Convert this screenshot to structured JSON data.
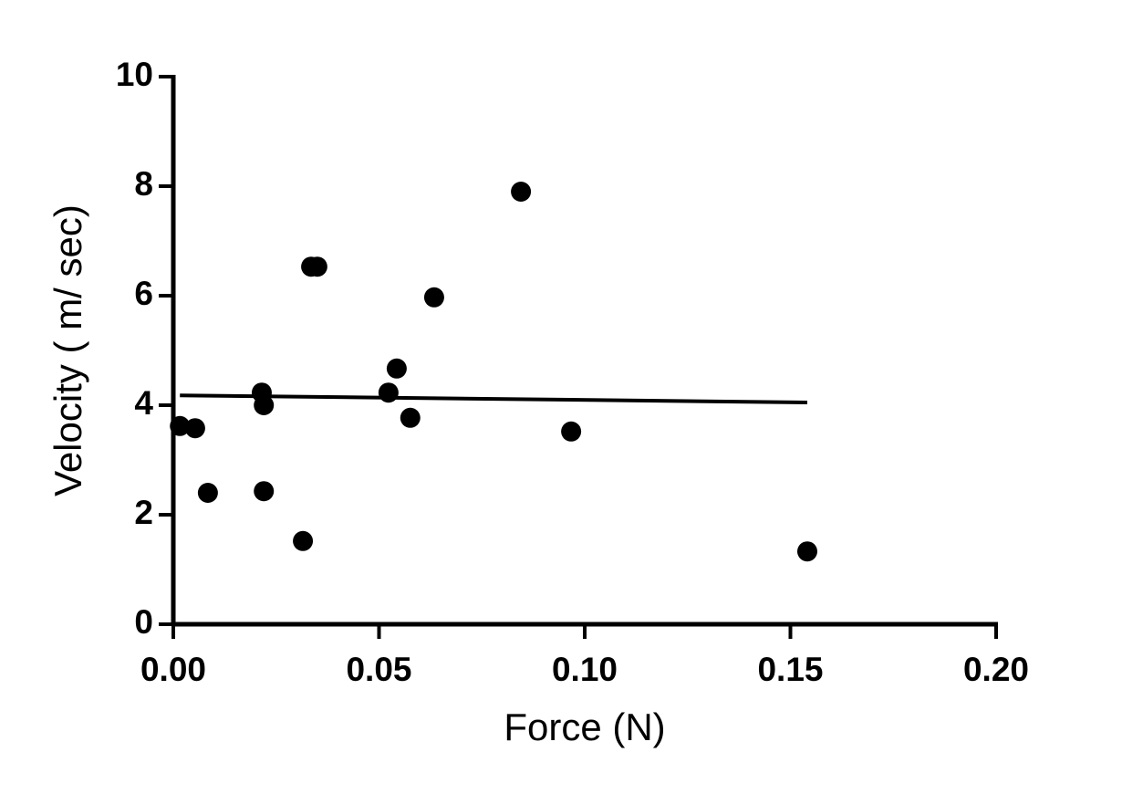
{
  "chart_data": {
    "type": "scatter",
    "x_label": "Force (N)",
    "y_label": "Velocity ( m/ sec)",
    "color": "#000000",
    "x": [
      0.0016,
      0.0053,
      0.0084,
      0.0215,
      0.022,
      0.022,
      0.0315,
      0.0335,
      0.035,
      0.0523,
      0.0543,
      0.0576,
      0.0634,
      0.0845,
      0.0967,
      0.1541
    ],
    "values": [
      3.62,
      3.58,
      2.4,
      4.23,
      4.0,
      2.43,
      1.52,
      6.53,
      6.53,
      4.23,
      4.67,
      3.77,
      5.97,
      7.9,
      3.52,
      1.33
    ],
    "fit": {
      "x": [
        0.0016,
        0.1541
      ],
      "values": [
        4.18,
        4.05
      ]
    },
    "xlim": [
      0,
      0.2
    ],
    "ylim": [
      0,
      10
    ],
    "xticks": [
      {
        "value": 0,
        "label": "0.00"
      },
      {
        "value": 0.05,
        "label": "0.05"
      },
      {
        "value": 0.1,
        "label": "0.10"
      },
      {
        "value": 0.15,
        "label": "0.15"
      },
      {
        "value": 0.2,
        "label": "0.20"
      }
    ],
    "yticks": [
      0,
      2,
      4,
      6,
      8,
      10
    ]
  }
}
